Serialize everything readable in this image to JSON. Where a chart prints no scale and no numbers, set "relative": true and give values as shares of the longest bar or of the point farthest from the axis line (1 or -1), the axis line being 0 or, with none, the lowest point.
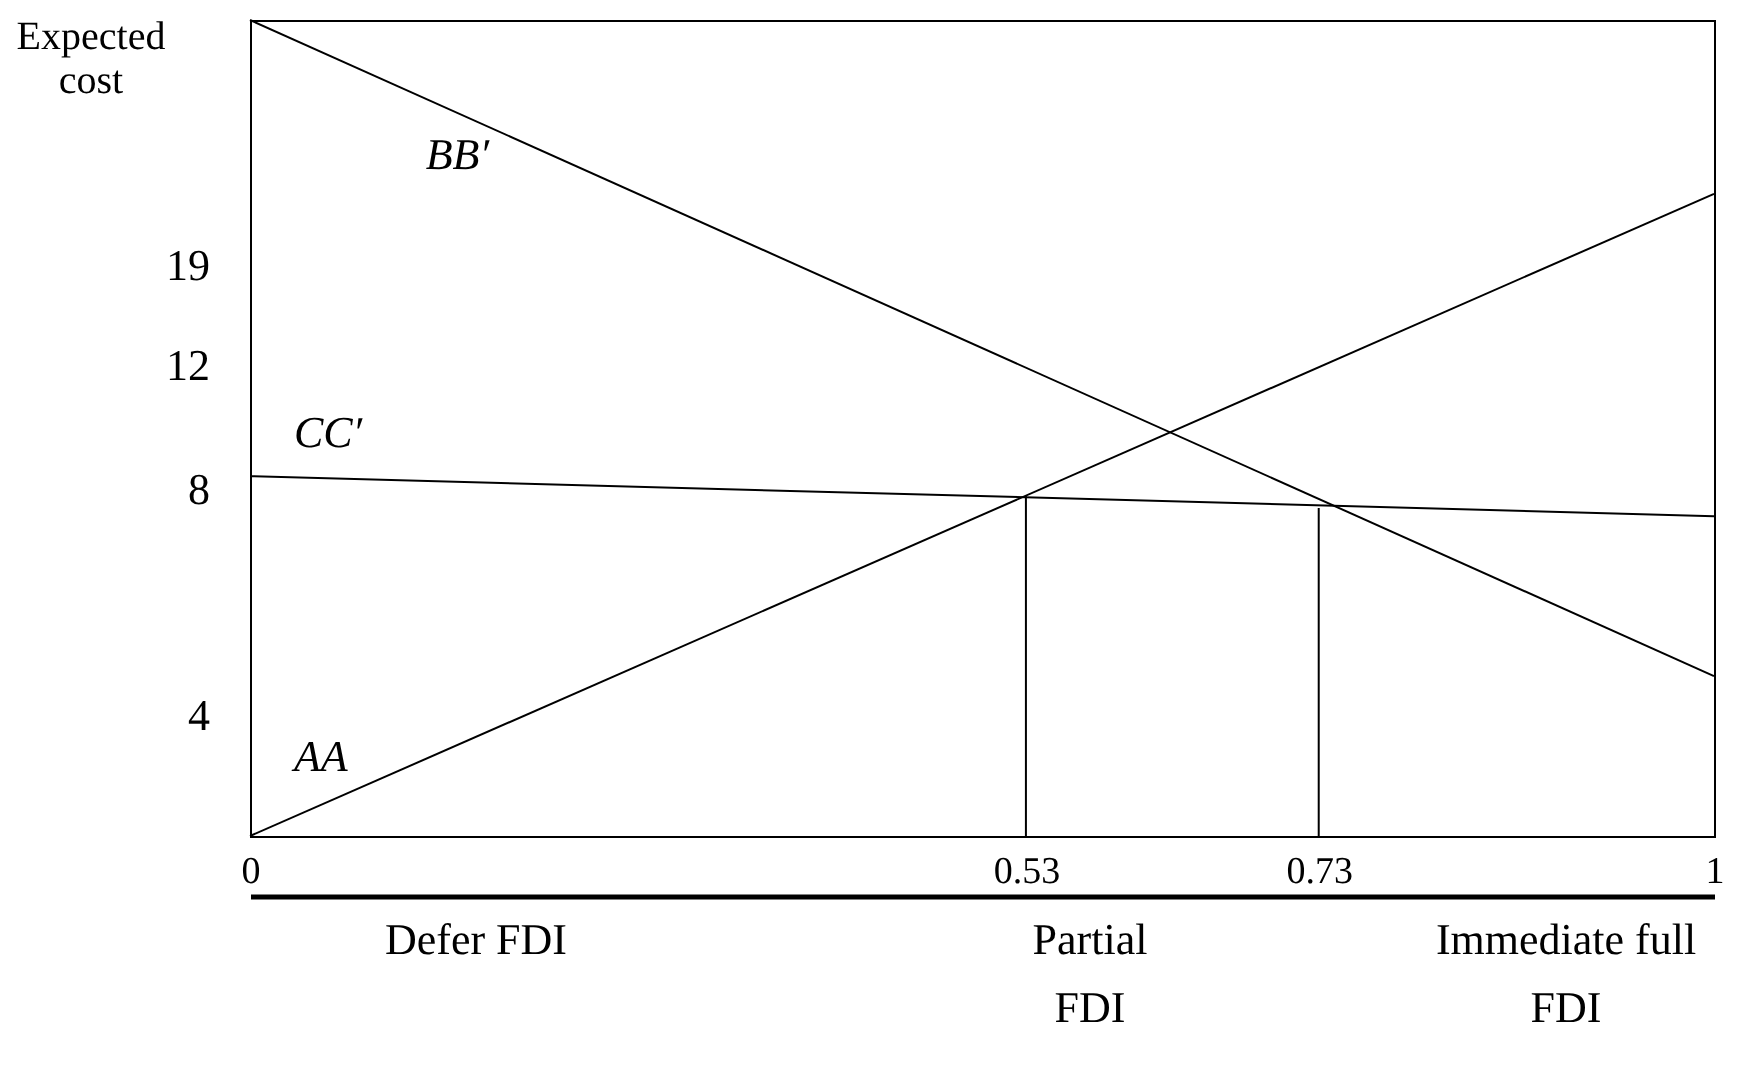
{
  "chart_data": {
    "type": "line",
    "ylabel": "Expected cost",
    "series": [
      {
        "name": "AA",
        "color": "#000000",
        "x": [
          0,
          1
        ],
        "values": [
          0,
          0.787
        ]
      },
      {
        "name": "BB′",
        "color": "#000000",
        "x": [
          0,
          1
        ],
        "values": [
          1.0,
          0.196
        ]
      },
      {
        "name": "CC′",
        "color": "#000000",
        "x": [
          0,
          1
        ],
        "values": [
          0.441,
          0.392
        ]
      },
      {
        "color": "#000000",
        "x": [
          0.53,
          0.53
        ],
        "values": [
          0,
          0.417
        ]
      },
      {
        "color": "#000000",
        "x": [
          0.73,
          0.73
        ],
        "values": [
          0,
          0.402
        ]
      }
    ],
    "xlim": [
      0,
      1
    ],
    "xticks": [
      0,
      0.53,
      0.73,
      1
    ],
    "relative": true,
    "annotations": [
      "4",
      "8",
      "12",
      "19",
      "Defer FDI",
      "Partial FDI",
      "Immediate full FDI"
    ],
    "grid": false,
    "marker": "none",
    "line_style": "solid"
  }
}
